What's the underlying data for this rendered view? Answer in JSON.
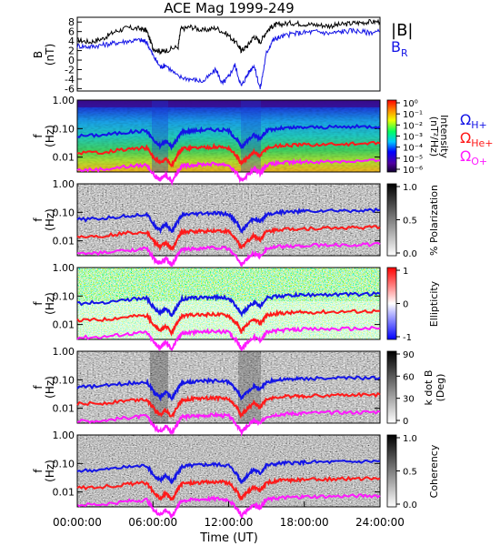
{
  "title": "ACE Mag 1999-249",
  "colors": {
    "black": "#000000",
    "blue": "#1414e6",
    "red": "#ff1a1a",
    "magenta": "#ff1aff"
  },
  "legend": {
    "b_mag": "|B|",
    "b_r_main": "B",
    "b_r_sub": "R",
    "omega_h_main": "Ω",
    "omega_h_sub": "H+",
    "omega_he_main": "Ω",
    "omega_he_sub": "He+",
    "omega_o_main": "Ω",
    "omega_o_sub": "O+"
  },
  "time_axis": {
    "label": "Time (UT)",
    "ticks": [
      "00:00:00",
      "06:00:00",
      "12:00:00",
      "18:00:00",
      "24:00:00"
    ]
  },
  "chart_data": [
    {
      "type": "line",
      "name": "B field",
      "ylabel_main": "B",
      "ylabel_unit": "(nT)",
      "yticks": [
        "8",
        "6",
        "4",
        "2",
        "0",
        "-2",
        "-4",
        "-6"
      ],
      "ylim": [
        -6.5,
        9
      ],
      "xlim": [
        0,
        24
      ],
      "series": [
        {
          "name": "|B|",
          "color": "#000000",
          "x": [
            0,
            1,
            2,
            3,
            4,
            5,
            5.5,
            6,
            6.6,
            7,
            8,
            8.2,
            9,
            10,
            11,
            12,
            12.8,
            13,
            13.5,
            14,
            14.5,
            15,
            15.5,
            16,
            17,
            18,
            19,
            20,
            21,
            22,
            23,
            24
          ],
          "y": [
            4.2,
            3.8,
            4.5,
            6.0,
            6.8,
            6.6,
            6.2,
            2.5,
            1.8,
            2.0,
            2.8,
            6.5,
            7.0,
            6.2,
            6.8,
            5.2,
            3.0,
            2.0,
            3.0,
            5.0,
            3.8,
            6.0,
            7.2,
            7.5,
            7.8,
            7.6,
            7.4,
            7.2,
            7.5,
            7.8,
            8.0,
            8.1
          ]
        },
        {
          "name": "B_R",
          "color": "#1414e6",
          "x": [
            0,
            1,
            2,
            3,
            4,
            5,
            5.5,
            6,
            6.6,
            7,
            8,
            9,
            10,
            11,
            11.5,
            12,
            12.5,
            13,
            13.5,
            14,
            14.5,
            15,
            15.5,
            16,
            17,
            18,
            19,
            20,
            21,
            22,
            23,
            24
          ],
          "y": [
            3.0,
            2.8,
            3.2,
            3.6,
            4.0,
            4.2,
            3.8,
            1.0,
            -1.5,
            -1.0,
            -3.5,
            -4.0,
            -4.5,
            -2.0,
            -5.0,
            -3.5,
            -1.0,
            -5.5,
            -3.0,
            -1.0,
            -6.0,
            1.5,
            4.2,
            4.8,
            5.5,
            5.8,
            6.0,
            5.6,
            6.0,
            6.2,
            5.8,
            6.0
          ]
        }
      ]
    },
    {
      "type": "heatmap",
      "name": "Intensity",
      "ylabel_main": "f",
      "ylabel_unit": "(Hz)",
      "yticks": [
        "1.00",
        "0.10",
        "0.01"
      ],
      "colorbar_label_main": "Intensity",
      "colorbar_label_unit": "(nT²/Hz)",
      "colorbar_ticks": [
        "10⁰",
        "10⁻¹",
        "10⁻²",
        "10⁻³",
        "10⁻⁴",
        "10⁻⁵",
        "10⁻⁶"
      ],
      "colorbar_range": [
        -6,
        0
      ]
    },
    {
      "type": "heatmap",
      "name": "% Polarization",
      "ylabel_main": "f",
      "ylabel_unit": "(Hz)",
      "yticks": [
        "1.00",
        "0.10",
        "0.01"
      ],
      "colorbar_label": "% Polarization",
      "colorbar_ticks": [
        "1.0",
        "0.5",
        "0.0"
      ],
      "colorbar_range": [
        0,
        1
      ]
    },
    {
      "type": "heatmap",
      "name": "Ellipticity",
      "ylabel_main": "f",
      "ylabel_unit": "(Hz)",
      "yticks": [
        "1.00",
        "0.10",
        "0.01"
      ],
      "colorbar_label": "Ellipticity",
      "colorbar_ticks": [
        "1",
        "0",
        "-1"
      ],
      "colorbar_range": [
        -1,
        1
      ]
    },
    {
      "type": "heatmap",
      "name": "k dot B",
      "ylabel_main": "f",
      "ylabel_unit": "(Hz)",
      "yticks": [
        "1.00",
        "0.10",
        "0.01"
      ],
      "colorbar_label_main": "k dot B",
      "colorbar_label_unit": "(Deg)",
      "colorbar_ticks": [
        "90",
        "60",
        "30",
        "0"
      ],
      "colorbar_range": [
        0,
        90
      ]
    },
    {
      "type": "heatmap",
      "name": "Coherency",
      "ylabel_main": "f",
      "ylabel_unit": "(Hz)",
      "yticks": [
        "1.00",
        "0.10",
        "0.01"
      ],
      "colorbar_label": "Coherency",
      "colorbar_ticks": [
        "1.0",
        "0.5",
        "0.0"
      ],
      "colorbar_range": [
        0,
        1
      ]
    }
  ],
  "gyrofrequency_curves": {
    "x_hours": [
      0,
      2,
      4,
      5.5,
      6.2,
      6.6,
      7,
      7.5,
      8,
      8.3,
      9,
      10,
      11,
      12,
      12.7,
      13,
      13.4,
      14,
      14.5,
      15,
      16,
      17,
      18,
      20,
      22,
      24
    ],
    "H+": [
      0.055,
      0.06,
      0.075,
      0.085,
      0.032,
      0.025,
      0.038,
      0.022,
      0.05,
      0.078,
      0.083,
      0.09,
      0.092,
      0.085,
      0.04,
      0.022,
      0.035,
      0.06,
      0.045,
      0.085,
      0.1,
      0.105,
      0.11,
      0.112,
      0.115,
      0.12
    ],
    "He+": [
      0.014,
      0.015,
      0.019,
      0.021,
      0.008,
      0.006,
      0.009,
      0.005,
      0.013,
      0.02,
      0.021,
      0.022,
      0.023,
      0.021,
      0.01,
      0.0055,
      0.009,
      0.015,
      0.011,
      0.021,
      0.025,
      0.026,
      0.027,
      0.028,
      0.029,
      0.03
    ],
    "O+": [
      0.0035,
      0.0037,
      0.0047,
      0.0053,
      0.002,
      0.0016,
      0.0024,
      0.0014,
      0.0033,
      0.005,
      0.0052,
      0.0056,
      0.0058,
      0.0053,
      0.0025,
      0.0014,
      0.0022,
      0.0037,
      0.0028,
      0.0053,
      0.0062,
      0.0065,
      0.0068,
      0.007,
      0.0072,
      0.0075
    ]
  }
}
